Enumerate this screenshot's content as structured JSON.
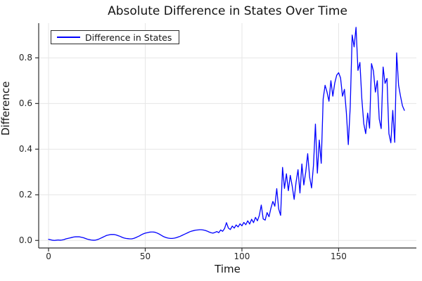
{
  "chart_data": {
    "type": "line",
    "title": "Absolute Difference in States Over Time",
    "xlabel": "Time",
    "ylabel": "Difference",
    "legend_position": "top-left",
    "grid": true,
    "xlim": [
      -5.1,
      190.2
    ],
    "ylim": [
      -0.033,
      0.952
    ],
    "xticks": [
      0,
      50,
      100,
      150
    ],
    "xtick_labels": [
      "0",
      "50",
      "100",
      "150"
    ],
    "yticks": [
      0.0,
      0.2,
      0.4,
      0.6,
      0.8
    ],
    "ytick_labels": [
      "0.0",
      "0.2",
      "0.4",
      "0.6",
      "0.8"
    ],
    "series": [
      {
        "name": "Difference in States",
        "color": "#0000ff",
        "x_start": 0,
        "x_step": 1,
        "y": [
          0.005,
          0.003,
          0.001,
          0.0,
          0.001,
          0.002,
          0.001,
          0.002,
          0.004,
          0.007,
          0.009,
          0.011,
          0.013,
          0.015,
          0.016,
          0.016,
          0.016,
          0.014,
          0.012,
          0.009,
          0.006,
          0.004,
          0.002,
          0.001,
          0.001,
          0.003,
          0.006,
          0.01,
          0.014,
          0.018,
          0.022,
          0.024,
          0.026,
          0.026,
          0.026,
          0.024,
          0.021,
          0.018,
          0.014,
          0.011,
          0.009,
          0.008,
          0.007,
          0.007,
          0.009,
          0.012,
          0.016,
          0.02,
          0.025,
          0.029,
          0.032,
          0.034,
          0.036,
          0.037,
          0.037,
          0.036,
          0.033,
          0.029,
          0.024,
          0.019,
          0.015,
          0.012,
          0.01,
          0.009,
          0.009,
          0.01,
          0.012,
          0.015,
          0.018,
          0.022,
          0.026,
          0.03,
          0.034,
          0.038,
          0.041,
          0.043,
          0.045,
          0.046,
          0.047,
          0.047,
          0.046,
          0.044,
          0.041,
          0.037,
          0.034,
          0.032,
          0.035,
          0.039,
          0.034,
          0.046,
          0.04,
          0.052,
          0.078,
          0.054,
          0.048,
          0.063,
          0.054,
          0.068,
          0.059,
          0.073,
          0.064,
          0.079,
          0.069,
          0.086,
          0.072,
          0.093,
          0.078,
          0.101,
          0.086,
          0.11,
          0.155,
          0.094,
          0.089,
          0.122,
          0.104,
          0.142,
          0.171,
          0.15,
          0.227,
          0.138,
          0.11,
          0.32,
          0.228,
          0.292,
          0.218,
          0.285,
          0.238,
          0.18,
          0.256,
          0.31,
          0.208,
          0.335,
          0.243,
          0.3,
          0.38,
          0.278,
          0.23,
          0.33,
          0.51,
          0.295,
          0.44,
          0.338,
          0.62,
          0.68,
          0.65,
          0.61,
          0.7,
          0.632,
          0.69,
          0.724,
          0.735,
          0.712,
          0.632,
          0.662,
          0.56,
          0.42,
          0.585,
          0.9,
          0.848,
          0.934,
          0.745,
          0.78,
          0.62,
          0.512,
          0.468,
          0.558,
          0.492,
          0.775,
          0.742,
          0.65,
          0.7,
          0.532,
          0.49,
          0.76,
          0.688,
          0.71,
          0.468,
          0.428,
          0.57,
          0.43,
          0.822,
          0.68,
          0.632,
          0.59,
          0.57
        ]
      }
    ]
  },
  "legend": {
    "label": "Difference in States"
  },
  "colors": {
    "line": "#0000ff",
    "grid": "#e6e6e6",
    "axis": "#2f2f2f",
    "tick_text": "#262626",
    "text": "#141414",
    "background": "#ffffff"
  }
}
